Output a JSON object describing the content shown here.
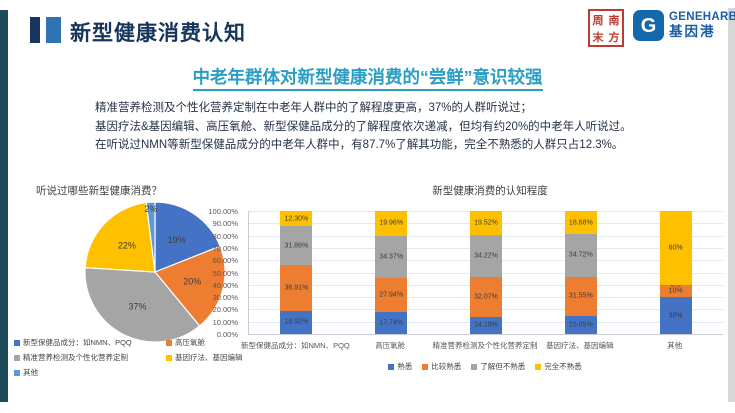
{
  "header": {
    "title": "新型健康消费认知",
    "seal_logo_chars": [
      "周",
      "南",
      "末",
      "方"
    ],
    "geneharbor": {
      "name": "GENEHARBOR",
      "cn": "基因港",
      "icon_letter": "G"
    }
  },
  "subtitle": "中老年群体对新型健康消费的“尝鲜”意识较强",
  "body_lines": [
    "精准营养检测及个性化营养定制在中老年人群中的了解程度更高，37%的人群听说过；",
    "基因疗法&基因编辑、高压氧舱、新型保健品成分的了解程度依次递减，但均有约20%的中老年人听说过。",
    "在听说过NMN等新型保健品成分的中老年人群中，有87.7%了解其功能，完全不熟悉的人群只占12.3%。"
  ],
  "colors": {
    "accent_navy": "#17375E",
    "accent_blue": "#2E74B5",
    "subtitle_teal": "#2B9EC4",
    "seal_red": "#BF3B2D",
    "logo_blue": "#1A5FA8",
    "series_blue": "#4472C4",
    "series_orange": "#ED7D31",
    "series_gray": "#A5A5A5",
    "series_yellow": "#FFC000",
    "series_lightblue": "#5B9BD5"
  },
  "chart_data": [
    {
      "type": "pie",
      "title": "听说过哪些新型健康消费？",
      "unit": "%",
      "start_angle_deg": 0,
      "direction": "clockwise",
      "legend_position": "bottom",
      "slices": [
        {
          "label": "新型保健品成分：如NMN、PQQ",
          "value": 19,
          "display": "19%",
          "color": "#4472C4"
        },
        {
          "label": "高压氧舱",
          "value": 20,
          "display": "20%",
          "color": "#ED7D31"
        },
        {
          "label": "精准营养检测及个性化营养定制",
          "value": 37,
          "display": "37%",
          "color": "#A5A5A5"
        },
        {
          "label": "基因疗法、基因编辑",
          "value": 22,
          "display": "22%",
          "color": "#FFC000"
        },
        {
          "label": "其他",
          "value": 2,
          "display": "2%",
          "color": "#5B9BD5"
        }
      ]
    },
    {
      "type": "bar",
      "stacked": true,
      "title": "新型健康消费的认知程度",
      "categories": [
        "新型保健品成分：如NMN、PQQ",
        "高压氧舱",
        "精准营养检测及个性化营养定制",
        "基因疗法、基因编辑",
        "其他"
      ],
      "series": [
        {
          "name": "熟悉",
          "color": "#4472C4",
          "values": [
            18.92,
            17.74,
            14.19,
            15.05,
            30
          ],
          "labels": [
            "18.92%",
            "17.74%",
            "14.19%",
            "15.05%",
            "30%"
          ]
        },
        {
          "name": "比较熟悉",
          "color": "#ED7D31",
          "values": [
            36.91,
            27.94,
            32.07,
            31.55,
            10
          ],
          "labels": [
            "36.91%",
            "27.94%",
            "32.07%",
            "31.55%",
            "10%"
          ]
        },
        {
          "name": "了解但不熟悉",
          "color": "#A5A5A5",
          "values": [
            31.86,
            34.37,
            34.22,
            34.72,
            0
          ],
          "labels": [
            "31.86%",
            "34.37%",
            "34.22%",
            "34.72%",
            "0%"
          ]
        },
        {
          "name": "完全不熟悉",
          "color": "#FFC000",
          "values": [
            12.3,
            19.96,
            19.52,
            18.68,
            60
          ],
          "labels": [
            "12.30%",
            "19.96%",
            "19.52%",
            "18.68%",
            "60%"
          ]
        }
      ],
      "ylim": [
        0,
        100
      ],
      "ytick_labels": [
        "100.00%",
        "90.00%",
        "80.00%",
        "70.00%",
        "60.00%",
        "50.00%",
        "40.00%",
        "30.00%",
        "20.00%",
        "10.00%",
        "0.00%"
      ],
      "grid": true,
      "legend_position": "bottom"
    }
  ]
}
